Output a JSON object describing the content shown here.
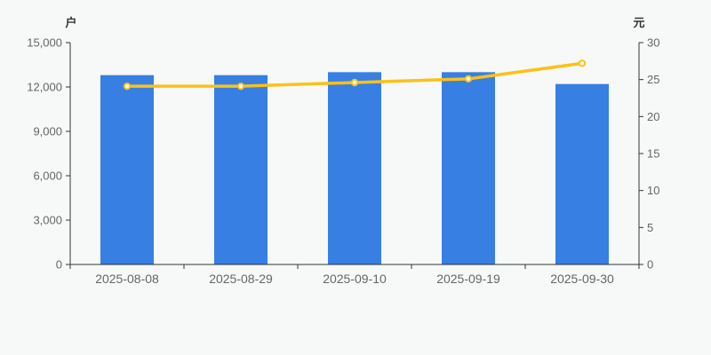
{
  "chart_data": {
    "type": "bar+line",
    "title": "",
    "categories": [
      "2025-08-08",
      "2025-08-29",
      "2025-09-10",
      "2025-09-19",
      "2025-09-30"
    ],
    "series": [
      {
        "name": "bar-series-left-axis",
        "type": "bar",
        "axis": "left",
        "color": "#377FE2",
        "values": [
          12800,
          12800,
          13000,
          13000,
          12200
        ]
      },
      {
        "name": "line-series-right-axis",
        "type": "line",
        "axis": "right",
        "color": "#FBC117",
        "marker_fill": "#ffffff",
        "values": [
          24.1,
          24.1,
          24.6,
          25.1,
          27.2
        ]
      }
    ],
    "left_axis": {
      "unit": "户",
      "min": 0,
      "max": 15000,
      "tick_interval": 3000,
      "tick_labels": [
        "0",
        "3,000",
        "6,000",
        "9,000",
        "12,000",
        "15,000"
      ]
    },
    "right_axis": {
      "unit": "元",
      "min": 0,
      "max": 30,
      "tick_interval": 5,
      "tick_labels": [
        "0",
        "5",
        "10",
        "15",
        "20",
        "25",
        "30"
      ]
    },
    "legend": "none",
    "grid": false,
    "background": "#f7f8f8",
    "axis_color": "#333333",
    "tick_label_color": "#666666"
  }
}
